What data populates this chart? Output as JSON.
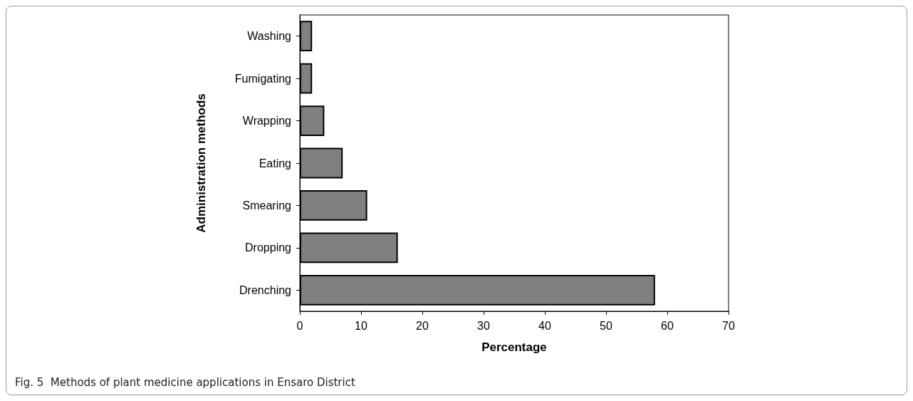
{
  "chart_data": {
    "type": "bar",
    "orientation": "horizontal",
    "xlabel": "Percentage",
    "ylabel": "Administration methods",
    "categories": [
      "Washing",
      "Fumigating",
      "Wrapping",
      "Eating",
      "Smearing",
      "Dropping",
      "Drenching"
    ],
    "values": [
      2,
      2,
      4,
      7,
      11,
      16,
      58
    ],
    "color": "#808080",
    "xlim": [
      0,
      70
    ],
    "xticks": [
      0,
      10,
      20,
      30,
      40,
      50,
      60,
      70
    ],
    "grid": false,
    "annotations": [
      "Fig. 5  Methods of plant medicine applications in Ensaro District"
    ]
  }
}
